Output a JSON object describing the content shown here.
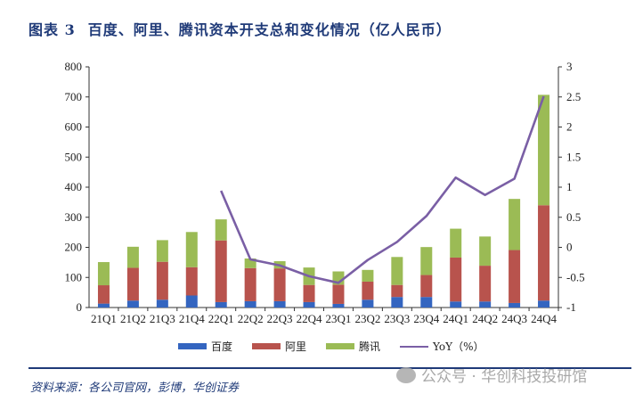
{
  "title": {
    "label": "图表 3",
    "text": "百度、阿里、腾讯资本开支总和变化情况（亿人民币）"
  },
  "source": "资料来源：各公司官网，彭博，华创证券",
  "watermark": "公众号 · 华创科技投研馆",
  "colors": {
    "baidu": "#3465c0",
    "ali": "#b8534d",
    "tencent": "#9bbb55",
    "yoy": "#7a5fa5",
    "title": "#1f3a78"
  },
  "chart_data": {
    "type": "bar",
    "stacked": true,
    "title": "百度、阿里、腾讯资本开支总和变化情况（亿人民币）",
    "categories": [
      "21Q1",
      "21Q2",
      "21Q3",
      "21Q4",
      "22Q1",
      "22Q2",
      "22Q3",
      "22Q4",
      "23Q1",
      "23Q2",
      "23Q3",
      "23Q4",
      "24Q1",
      "24Q2",
      "24Q3",
      "24Q4"
    ],
    "series": [
      {
        "name": "百度",
        "values": [
          13,
          23,
          26,
          40,
          18,
          21,
          21,
          18,
          12,
          26,
          35,
          35,
          20,
          20,
          15,
          23
        ]
      },
      {
        "name": "阿里",
        "values": [
          61,
          109,
          126,
          94,
          205,
          110,
          109,
          57,
          64,
          60,
          40,
          73,
          146,
          119,
          176,
          317
        ]
      },
      {
        "name": "腾讯",
        "values": [
          77,
          70,
          72,
          117,
          70,
          32,
          24,
          58,
          44,
          39,
          93,
          93,
          96,
          97,
          170,
          367
        ]
      }
    ],
    "line_series": {
      "name": "YoY（%）",
      "axis": "right",
      "values": [
        null,
        null,
        null,
        null,
        0.94,
        -0.2,
        -0.3,
        -0.48,
        -0.59,
        -0.21,
        0.09,
        0.52,
        1.16,
        0.87,
        1.14,
        2.51
      ]
    },
    "ylim": [
      0,
      800
    ],
    "yticks": [
      0,
      100,
      200,
      300,
      400,
      500,
      600,
      700,
      800
    ],
    "y2lim": [
      -1,
      3
    ],
    "y2ticks": [
      "-1",
      "-0.5",
      "0",
      "0.5",
      "1",
      "1.5",
      "2",
      "2.5",
      "3"
    ],
    "legend_position": "bottom",
    "grid": false
  }
}
